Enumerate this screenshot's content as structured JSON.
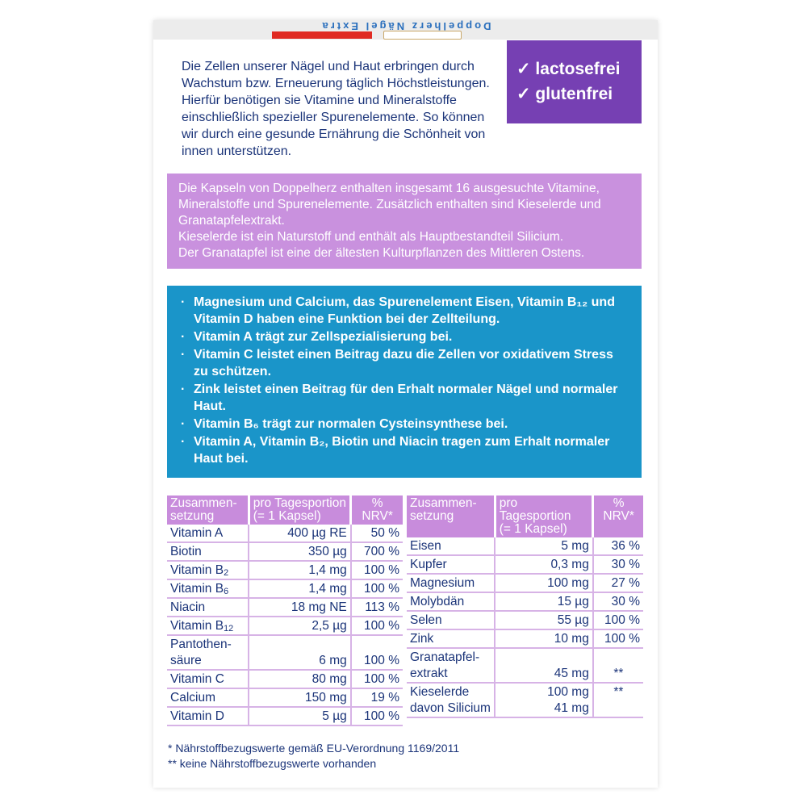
{
  "header": {
    "brand_mirrored": "Doppelherz Nägel Extra"
  },
  "intro": "Die Zellen unserer Nägel und Haut erbringen durch Wachstum bzw. Erneuerung täglich Höchst­leistungen. Hierfür benötigen sie Vitamine und Mineralstoffe einschließlich spezieller Spurenele­mente. So können wir durch eine gesunde Ernährung die Schönheit von innen unterstützen.",
  "badge": [
    "✓ lactosefrei",
    "✓ glutenfrei"
  ],
  "pink": [
    "Die Kapseln von Doppelherz enthalten insgesamt 16 ausgesuchte Vitamine, Mineralstoffe und Spurenelemente. Zusätzlich enthalten sind Kieselerde und Granatapfelextrakt.",
    "Kieselerde ist ein Naturstoff und enthält als Hauptbestandteil Silicium.",
    "Der Granatapfel ist eine der ältesten Kulturpflanzen des Mittleren Ostens."
  ],
  "claims": [
    "Magnesium und Calcium, das Spurenelement Eisen, Vitamin B₁₂ und Vitamin D haben eine Funktion bei der Zellteilung.",
    "Vitamin A trägt zur Zellspezialisierung bei.",
    "Vitamin C leistet einen Beitrag dazu die Zellen vor oxidativem Stress zu schützen.",
    "Zink leistet einen Beitrag für den Erhalt normaler Nägel und normaler Haut.",
    "Vitamin B₆ trägt zur normalen Cysteinsynthese bei.",
    "Vitamin A, Vitamin B₂, Biotin und Niacin tragen zum Erhalt normaler Haut bei."
  ],
  "table_headers": [
    "Zusammen-\nsetzung",
    "pro Tagesportion\n(= 1 Kapsel)",
    "%\nNRV*"
  ],
  "table_left": [
    [
      "Vitamin A",
      "400  µg  RE",
      "50 %"
    ],
    [
      "Biotin",
      "350  µg",
      "700 %"
    ],
    [
      "Vitamin B₂",
      "1,4 mg",
      "100 %"
    ],
    [
      "Vitamin B₆",
      "1,4 mg",
      "100 %"
    ],
    [
      "Niacin",
      "18 mg NE",
      "113 %"
    ],
    [
      "Vitamin B₁₂",
      "2,5  µg",
      "100 %"
    ],
    [
      "Pantothen-\nsäure",
      "6 mg",
      "100 %"
    ],
    [
      "Vitamin C",
      "80 mg",
      "100 %"
    ],
    [
      "Calcium",
      "150 mg",
      "19 %"
    ],
    [
      "Vitamin D",
      "5  µg",
      "100 %"
    ]
  ],
  "table_right": [
    [
      "Eisen",
      "5 mg",
      "36 %"
    ],
    [
      "Kupfer",
      "0,3 mg",
      "30 %"
    ],
    [
      "Magnesium",
      "100 mg",
      "27 %"
    ],
    [
      "Molybdän",
      "15  µg",
      "30 %"
    ],
    [
      "Selen",
      "55  µg",
      "100 %"
    ],
    [
      "Zink",
      "10 mg",
      "100 %"
    ],
    [
      "Granatapfel-\nextrakt",
      "45 mg",
      "**"
    ],
    [
      "Kieselerde\ndavon Silicium",
      "100 mg\n41 mg",
      "**"
    ]
  ],
  "footnotes": [
    "*  Nährstoffbezugswerte gemäß EU-Verordnung 1169/2011",
    "** keine Nährstoffbezugswerte vorhanden"
  ],
  "colors": {
    "purple": "#7640b3",
    "pink": "#c991de",
    "blue": "#1a95c9",
    "text": "#1b3479"
  }
}
